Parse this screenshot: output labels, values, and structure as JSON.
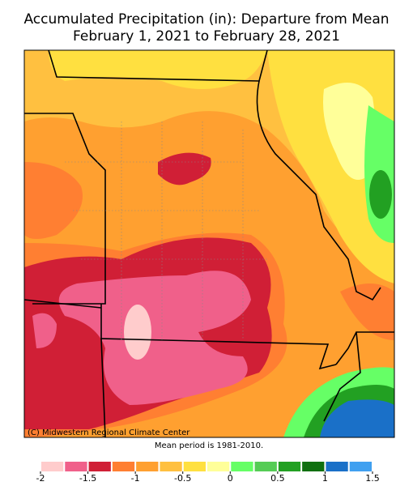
{
  "title": [
    "Accumulated Precipitation (in): Departure from Mean",
    "February 1, 2021 to February 28, 2021"
  ],
  "credit": "(C) Midwestern Regional Climate Center",
  "note": "Mean period is 1981-2010.",
  "colorbar": {
    "range": [
      -2,
      1.5
    ],
    "ticks": [
      -2,
      -1.5,
      -1,
      -0.5,
      0,
      0.5,
      1,
      1.5
    ],
    "colors": [
      "#ffcccc",
      "#f0608a",
      "#d01f36",
      "#ff7f32",
      "#ffa030",
      "#ffc040",
      "#ffe040",
      "#ffff99",
      "#66ff66",
      "#55cc55",
      "#22a022",
      "#107010",
      "#1a70c8",
      "#40a0f0"
    ]
  }
}
